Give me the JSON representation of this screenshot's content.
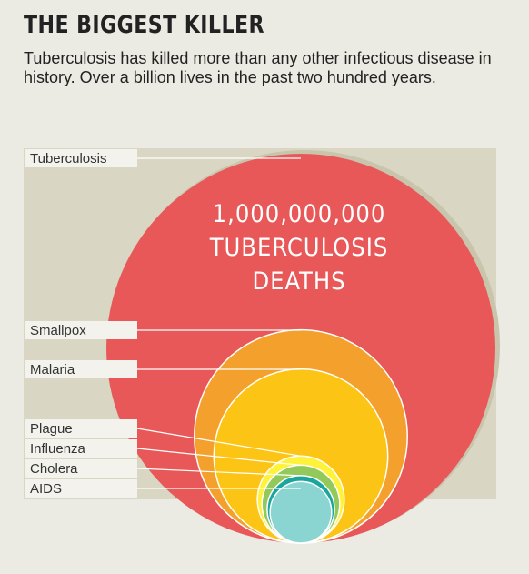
{
  "header": {
    "title": "THE BIGGEST KILLER",
    "subtitle": "Tuberculosis has killed more than any other infectious disease in history. Over a billion lives in the past two hundred years."
  },
  "chart_data": {
    "type": "nested-bubble",
    "annotation": [
      "1,000,000,000",
      "TUBERCULOSIS",
      "DEATHS"
    ],
    "series": [
      {
        "name": "Tuberculosis",
        "value": 1000000000,
        "color": "#e85858"
      },
      {
        "name": "Smallpox",
        "value": 300000000,
        "color": "#f4a02c"
      },
      {
        "name": "Malaria",
        "value": 200000000,
        "color": "#fcc515"
      },
      {
        "name": "Plague",
        "value": 50000000,
        "color": "#fff23a"
      },
      {
        "name": "Influenza",
        "value": 40000000,
        "color": "#92c95a"
      },
      {
        "name": "Cholera",
        "value": 30000000,
        "color": "#1aa69c"
      },
      {
        "name": "AIDS",
        "value": 25000000,
        "color": "#8ad4d2"
      }
    ]
  },
  "colors": {
    "background": "#ecebe3",
    "panel": "#d9d6c3",
    "label_box": "#f3f2ec"
  }
}
